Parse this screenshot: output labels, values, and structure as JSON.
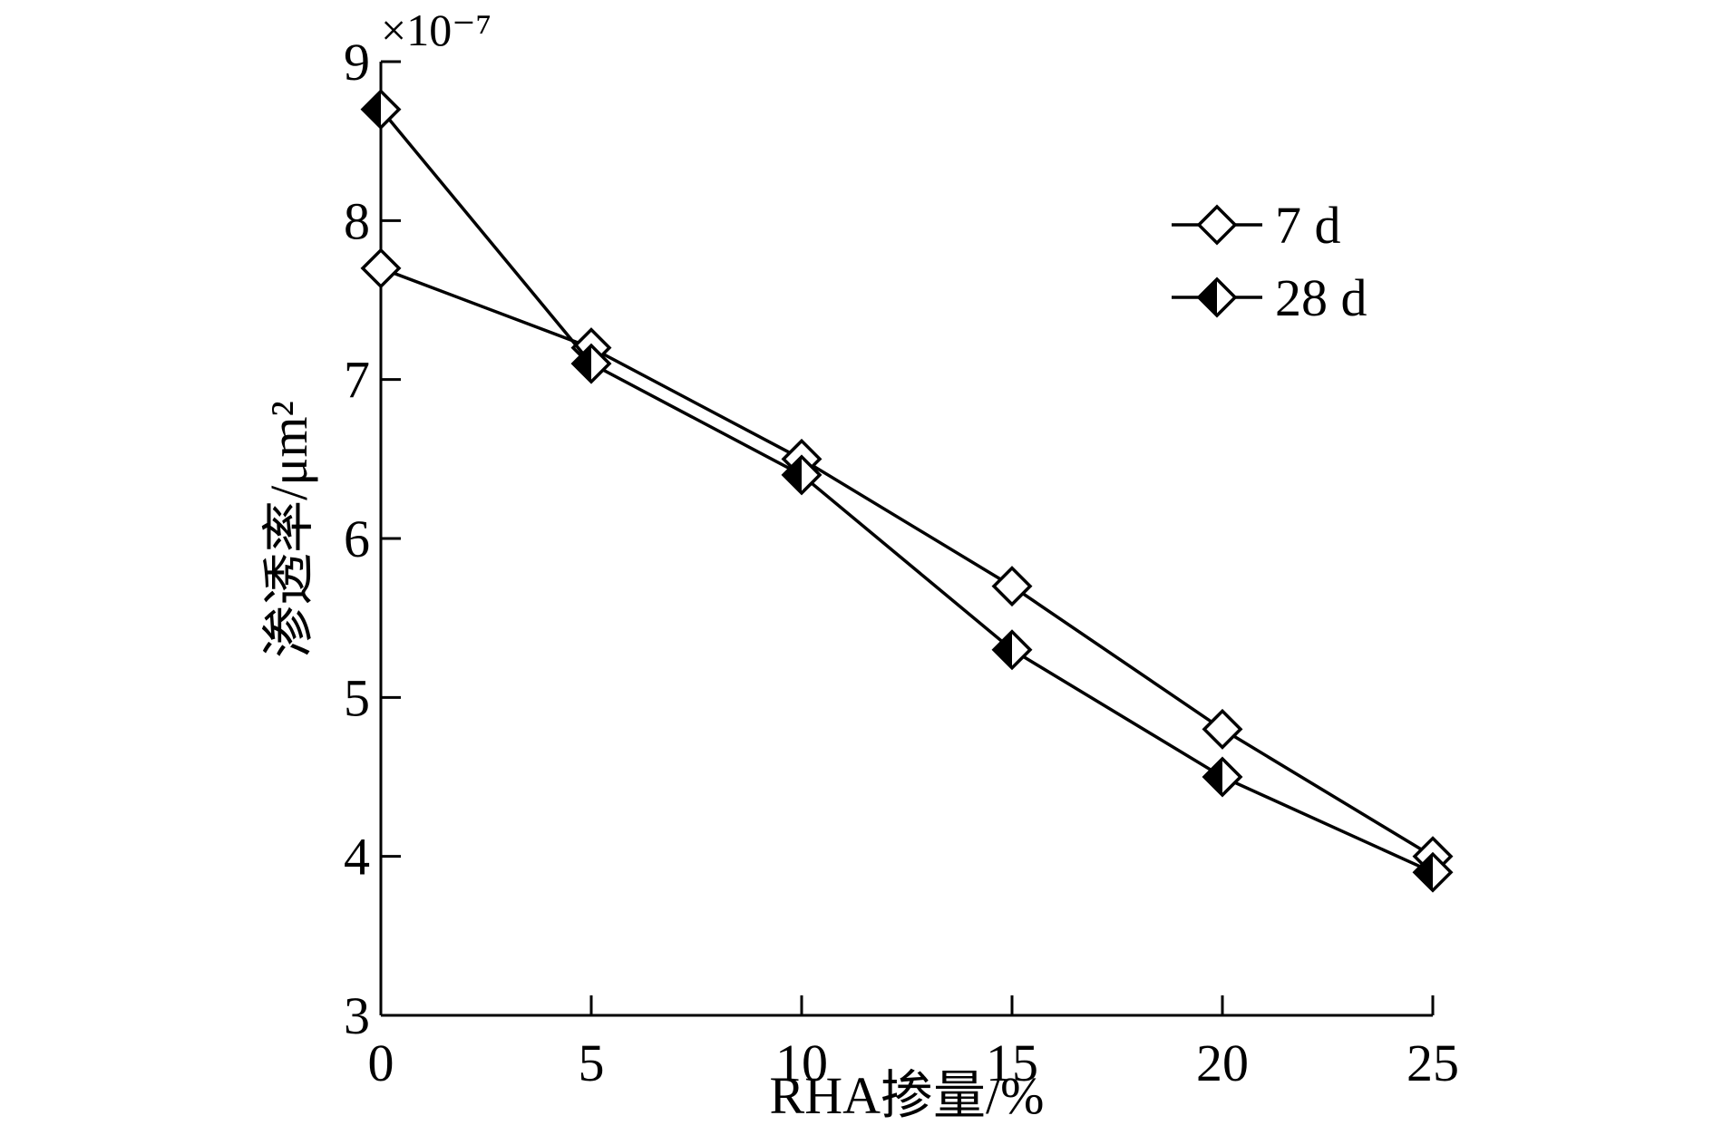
{
  "chart_data": {
    "type": "line",
    "xlabel": "RHA掺量/%",
    "ylabel": "渗透率/μm²",
    "y_exponent_label": "×10⁻⁷",
    "xlim": [
      0,
      25
    ],
    "ylim": [
      3,
      9
    ],
    "x_ticks": [
      "0",
      "5",
      "10",
      "15",
      "20",
      "25"
    ],
    "y_ticks": [
      "3",
      "4",
      "5",
      "6",
      "7",
      "8",
      "9"
    ],
    "x": [
      0,
      5,
      10,
      15,
      20,
      25
    ],
    "series": [
      {
        "name": "7 d",
        "marker": "open-diamond",
        "values": [
          7.7,
          7.2,
          6.5,
          5.7,
          4.8,
          4.0
        ]
      },
      {
        "name": "28 d",
        "marker": "half-filled-diamond",
        "values": [
          8.7,
          7.1,
          6.4,
          5.3,
          4.5,
          3.9
        ]
      }
    ],
    "legend_position": "top-right",
    "grid": false
  }
}
